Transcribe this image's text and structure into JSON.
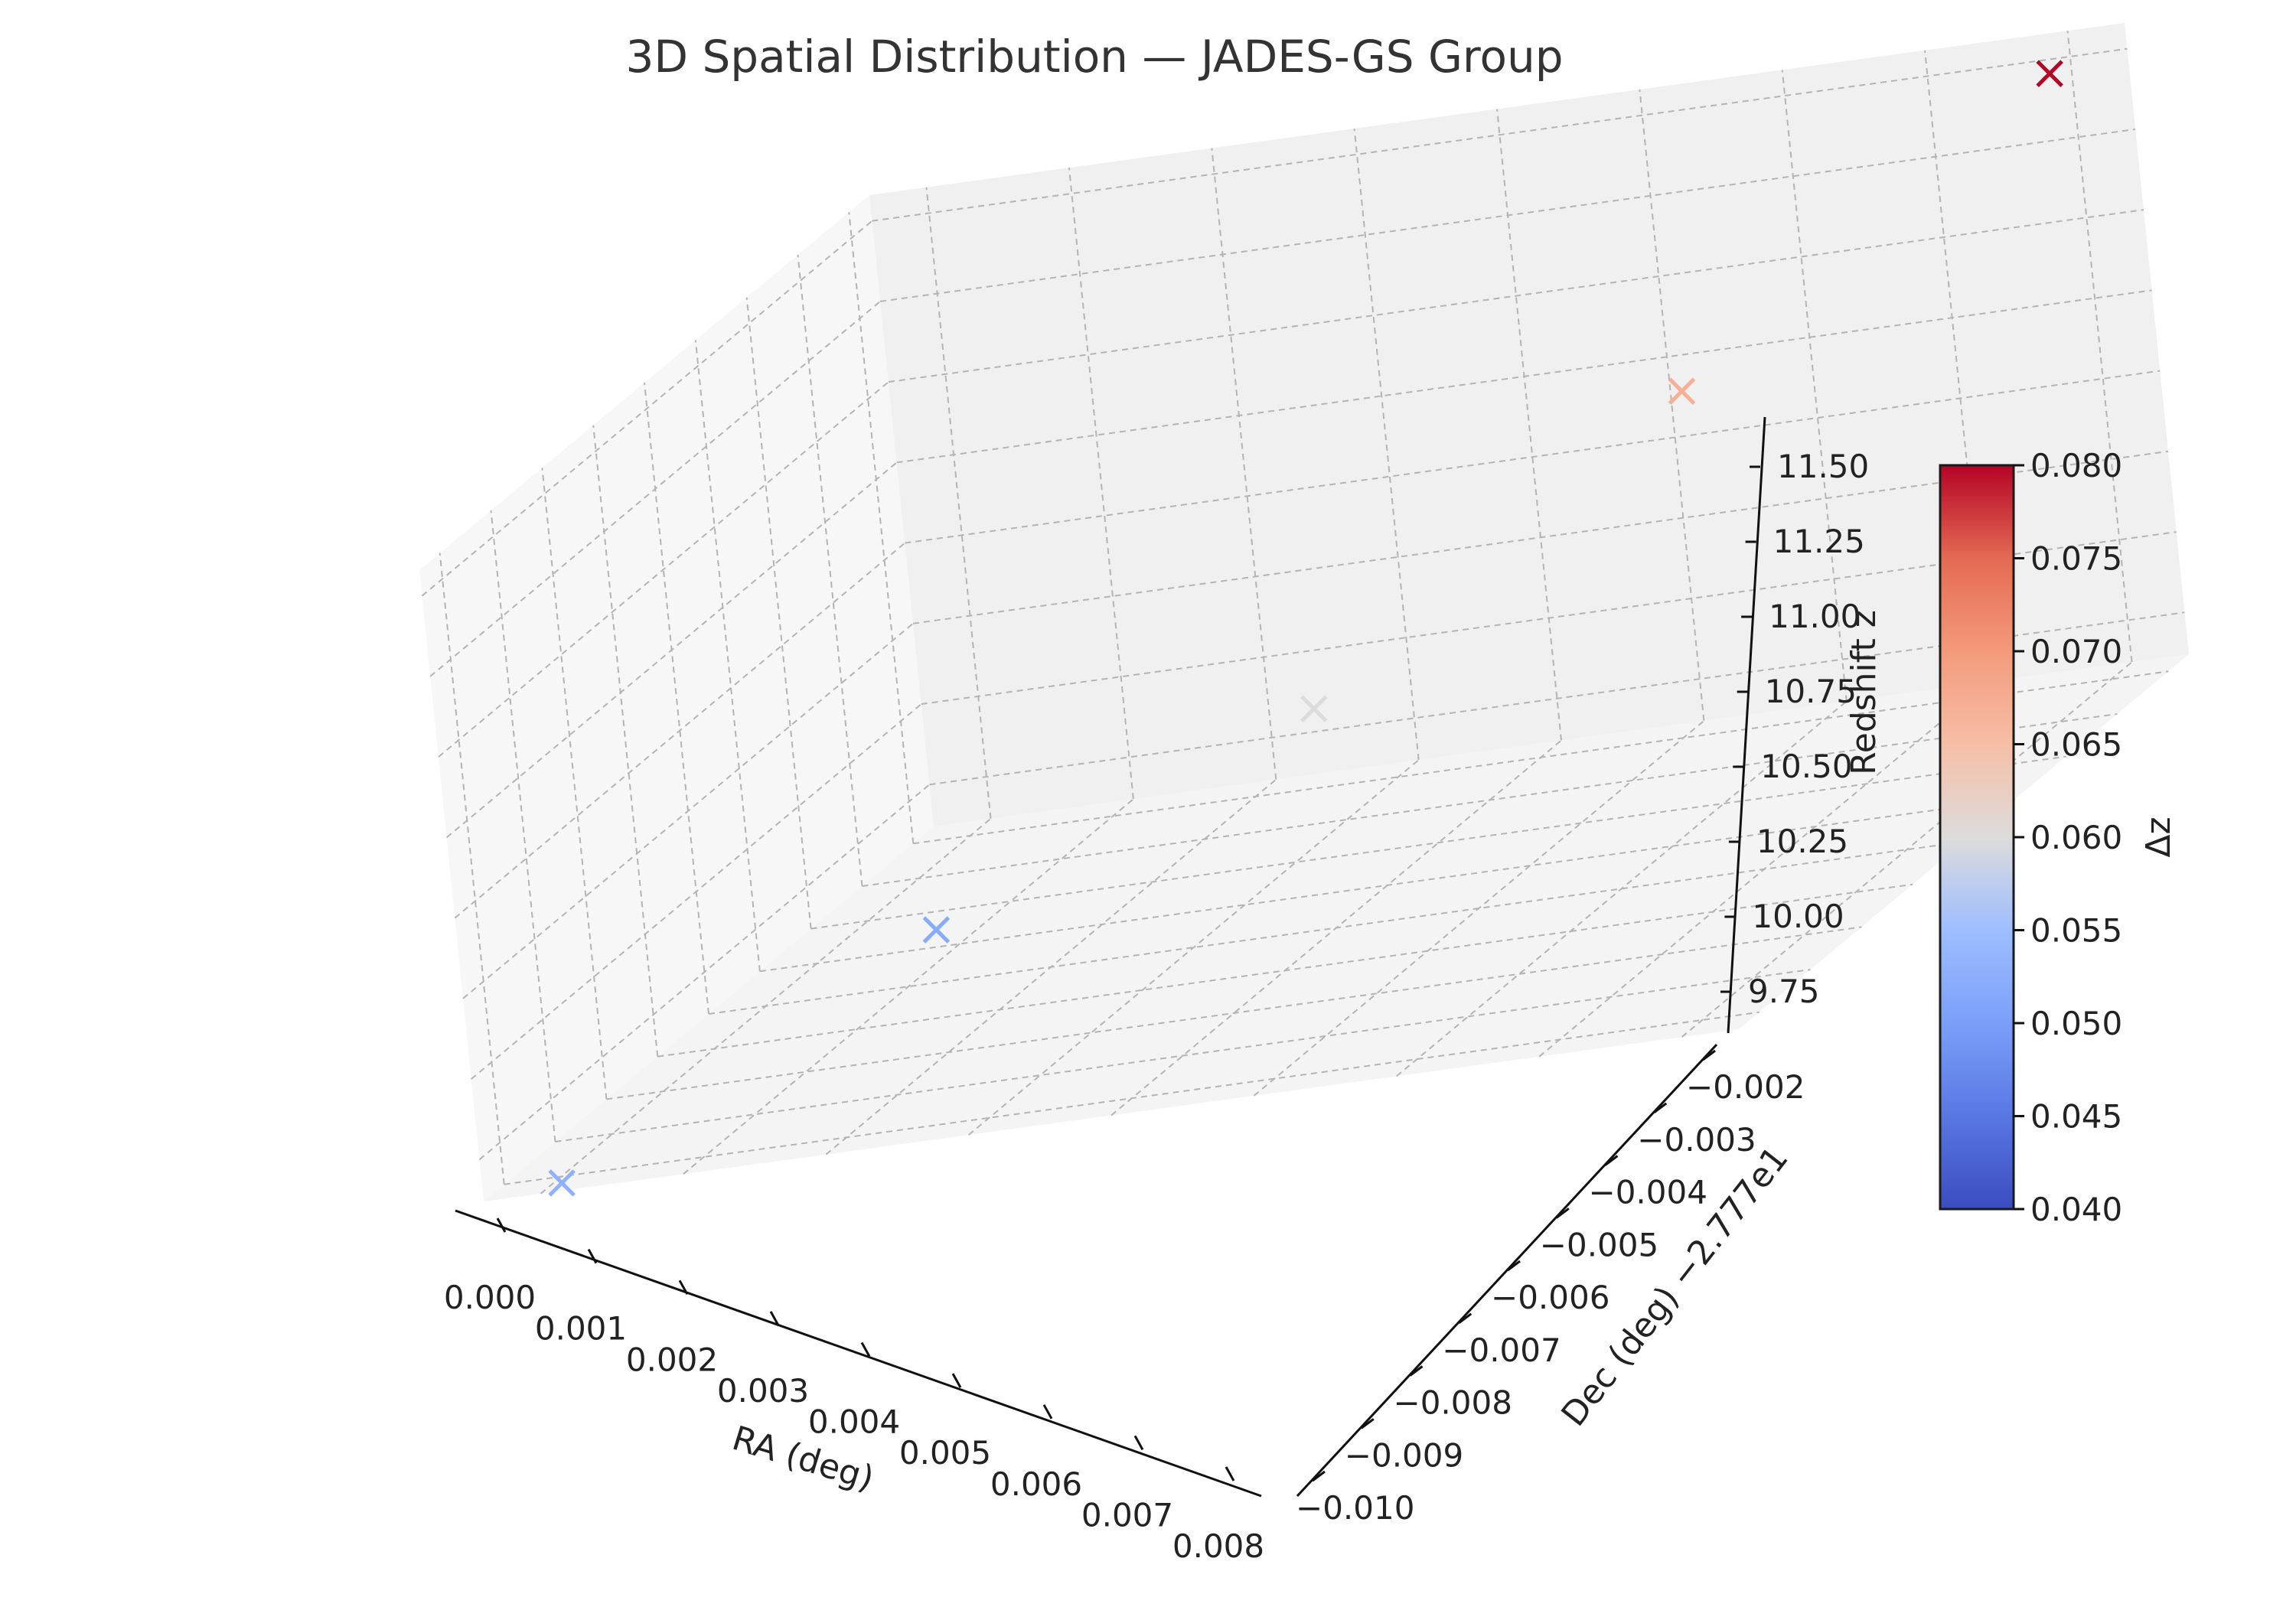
{
  "chart_data": {
    "type": "scatter",
    "title": "3D Spatial Distribution — JADES-GS Group",
    "xlabel": "RA (deg)",
    "ylabel": "Dec (deg)",
    "ylabel_offset": "−2.777e1",
    "zlabel": "Redshift z",
    "colorbar_label": "Δz",
    "marker": "x",
    "colormap": "coolwarm",
    "x_ticks": [
      "0.000",
      "0.001",
      "0.002",
      "0.003",
      "0.004",
      "0.005",
      "0.006",
      "0.007",
      "0.008"
    ],
    "y_ticks": [
      "−0.010",
      "−0.009",
      "−0.008",
      "−0.007",
      "−0.006",
      "−0.005",
      "−0.004",
      "−0.003",
      "−0.002"
    ],
    "z_ticks": [
      "9.75",
      "10.00",
      "10.25",
      "10.50",
      "10.75",
      "11.00",
      "11.25",
      "11.50"
    ],
    "colorbar_ticks": [
      "0.040",
      "0.045",
      "0.050",
      "0.055",
      "0.060",
      "0.065",
      "0.070",
      "0.075",
      "0.080"
    ],
    "xlim": [
      -0.0004,
      0.0084
    ],
    "ylim": [
      -0.0104,
      -0.0016
    ],
    "zlim": [
      9.62,
      11.58
    ],
    "clim": [
      0.04,
      0.08
    ],
    "points": [
      {
        "x": 0.0,
        "y": -0.01,
        "z": 9.6,
        "dz": 0.053
      },
      {
        "x": 0.002,
        "y": -0.008,
        "z": 10.0,
        "dz": 0.052
      },
      {
        "x": 0.004,
        "y": -0.006,
        "z": 10.3,
        "dz": 0.06
      },
      {
        "x": 0.006,
        "y": -0.004,
        "z": 10.9,
        "dz": 0.067
      },
      {
        "x": 0.008,
        "y": -0.002,
        "z": 11.5,
        "dz": 0.08
      }
    ],
    "grid": true
  }
}
